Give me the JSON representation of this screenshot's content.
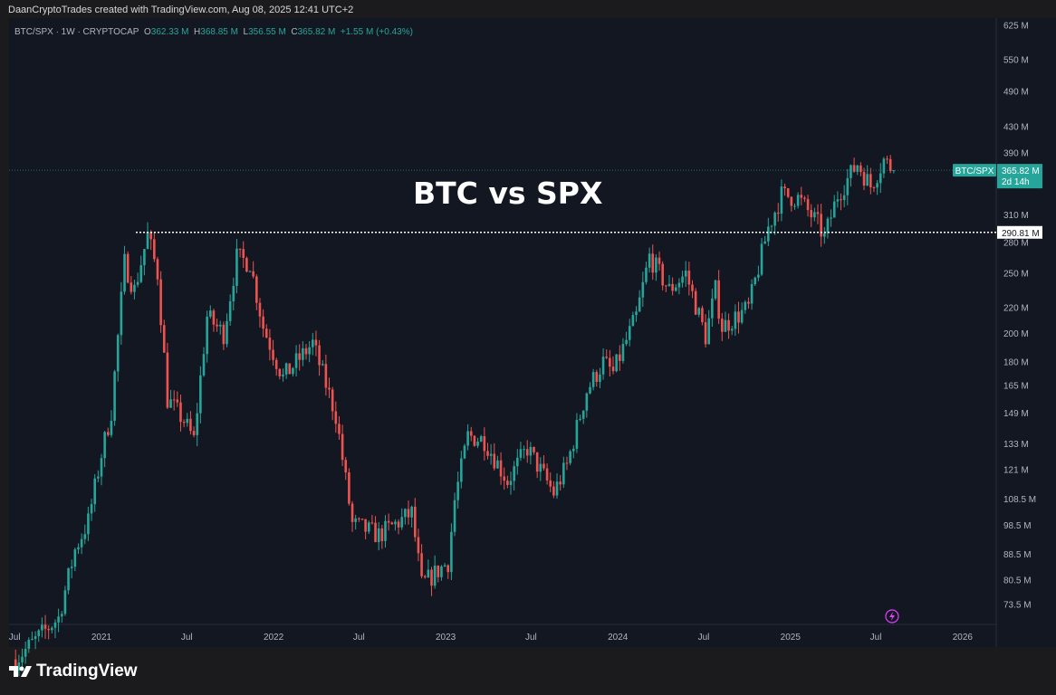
{
  "credit": "DaanCryptoTrades created with TradingView.com, Aug 08, 2025 12:41 UTC+2",
  "legend": {
    "symbol": "BTC/SPX · 1W · CRYPTOCAP",
    "o_label": "O",
    "o": "362.33 M",
    "h_label": "H",
    "h": "368.85 M",
    "l_label": "L",
    "l": "356.55 M",
    "c_label": "C",
    "c": "365.82 M",
    "change": "+1.55 M (+0.43%)"
  },
  "annotation_title": "BTC vs SPX",
  "logo": "TradingView",
  "colors": {
    "up": "#26a69a",
    "down": "#ef5350",
    "background": "#131722",
    "level_line": "#ffffff"
  },
  "chart_data": {
    "type": "candlestick",
    "timeframe": "weekly",
    "y_scale": "log",
    "y_unit": "M",
    "ylim": [
      70,
      640
    ],
    "y_ticks": [
      "625 M",
      "550 M",
      "490 M",
      "430 M",
      "390 M",
      "310 M",
      "280 M",
      "250 M",
      "220 M",
      "200 M",
      "180 M",
      "165 M",
      "149 M",
      "133 M",
      "121 M",
      "108.5 M",
      "98.5 M",
      "88.5 M",
      "80.5 M",
      "73.5 M"
    ],
    "x_ticks": [
      "Jul",
      "2021",
      "Jul",
      "2022",
      "Jul",
      "2023",
      "Jul",
      "2024",
      "Jul",
      "2025",
      "Jul",
      "2026"
    ],
    "approx_closes": [
      [
        "2020-07-03",
        60
      ],
      [
        "2020-10-02",
        70
      ],
      [
        "2020-11-06",
        90
      ],
      [
        "2020-12-04",
        100
      ],
      [
        "2021-01-01",
        128
      ],
      [
        "2021-01-22",
        150
      ],
      [
        "2021-02-19",
        260
      ],
      [
        "2021-03-12",
        235
      ],
      [
        "2021-04-09",
        288
      ],
      [
        "2021-04-30",
        250
      ],
      [
        "2021-05-21",
        157
      ],
      [
        "2021-06-25",
        145
      ],
      [
        "2021-07-16",
        135
      ],
      [
        "2021-08-13",
        213
      ],
      [
        "2021-09-17",
        200
      ],
      [
        "2021-10-15",
        265
      ],
      [
        "2021-11-12",
        260
      ],
      [
        "2021-12-10",
        205
      ],
      [
        "2022-01-21",
        170
      ],
      [
        "2022-03-25",
        193
      ],
      [
        "2022-05-13",
        148
      ],
      [
        "2022-06-17",
        99
      ],
      [
        "2022-08-12",
        95
      ],
      [
        "2022-10-21",
        103
      ],
      [
        "2022-11-11",
        79
      ],
      [
        "2023-01-06",
        86
      ],
      [
        "2023-01-20",
        108
      ],
      [
        "2023-02-17",
        137
      ],
      [
        "2023-03-24",
        135
      ],
      [
        "2023-05-12",
        116
      ],
      [
        "2023-06-23",
        131
      ],
      [
        "2023-08-18",
        111
      ],
      [
        "2023-09-15",
        123
      ],
      [
        "2023-10-27",
        162
      ],
      [
        "2023-12-01",
        180
      ],
      [
        "2023-12-22",
        173
      ],
      [
        "2024-02-09",
        213
      ],
      [
        "2024-03-08",
        266
      ],
      [
        "2024-04-19",
        235
      ],
      [
        "2024-05-24",
        250
      ],
      [
        "2024-07-05",
        198
      ],
      [
        "2024-07-26",
        235
      ],
      [
        "2024-08-09",
        205
      ],
      [
        "2024-10-04",
        220
      ],
      [
        "2024-11-15",
        296
      ],
      [
        "2024-12-13",
        334
      ],
      [
        "2025-01-17",
        330
      ],
      [
        "2025-02-28",
        300
      ],
      [
        "2025-03-14",
        285
      ],
      [
        "2025-04-11",
        334
      ],
      [
        "2025-05-23",
        375
      ],
      [
        "2025-06-20",
        345
      ],
      [
        "2025-07-18",
        380
      ],
      [
        "2025-08-08",
        365.82
      ]
    ],
    "last_price": {
      "symbol": "BTC/SPX",
      "value": "365.82 M",
      "countdown": "2d 14h",
      "numeric": 365.82
    },
    "horizontal_level": {
      "label": "290.81 M",
      "value": 290.81
    }
  }
}
